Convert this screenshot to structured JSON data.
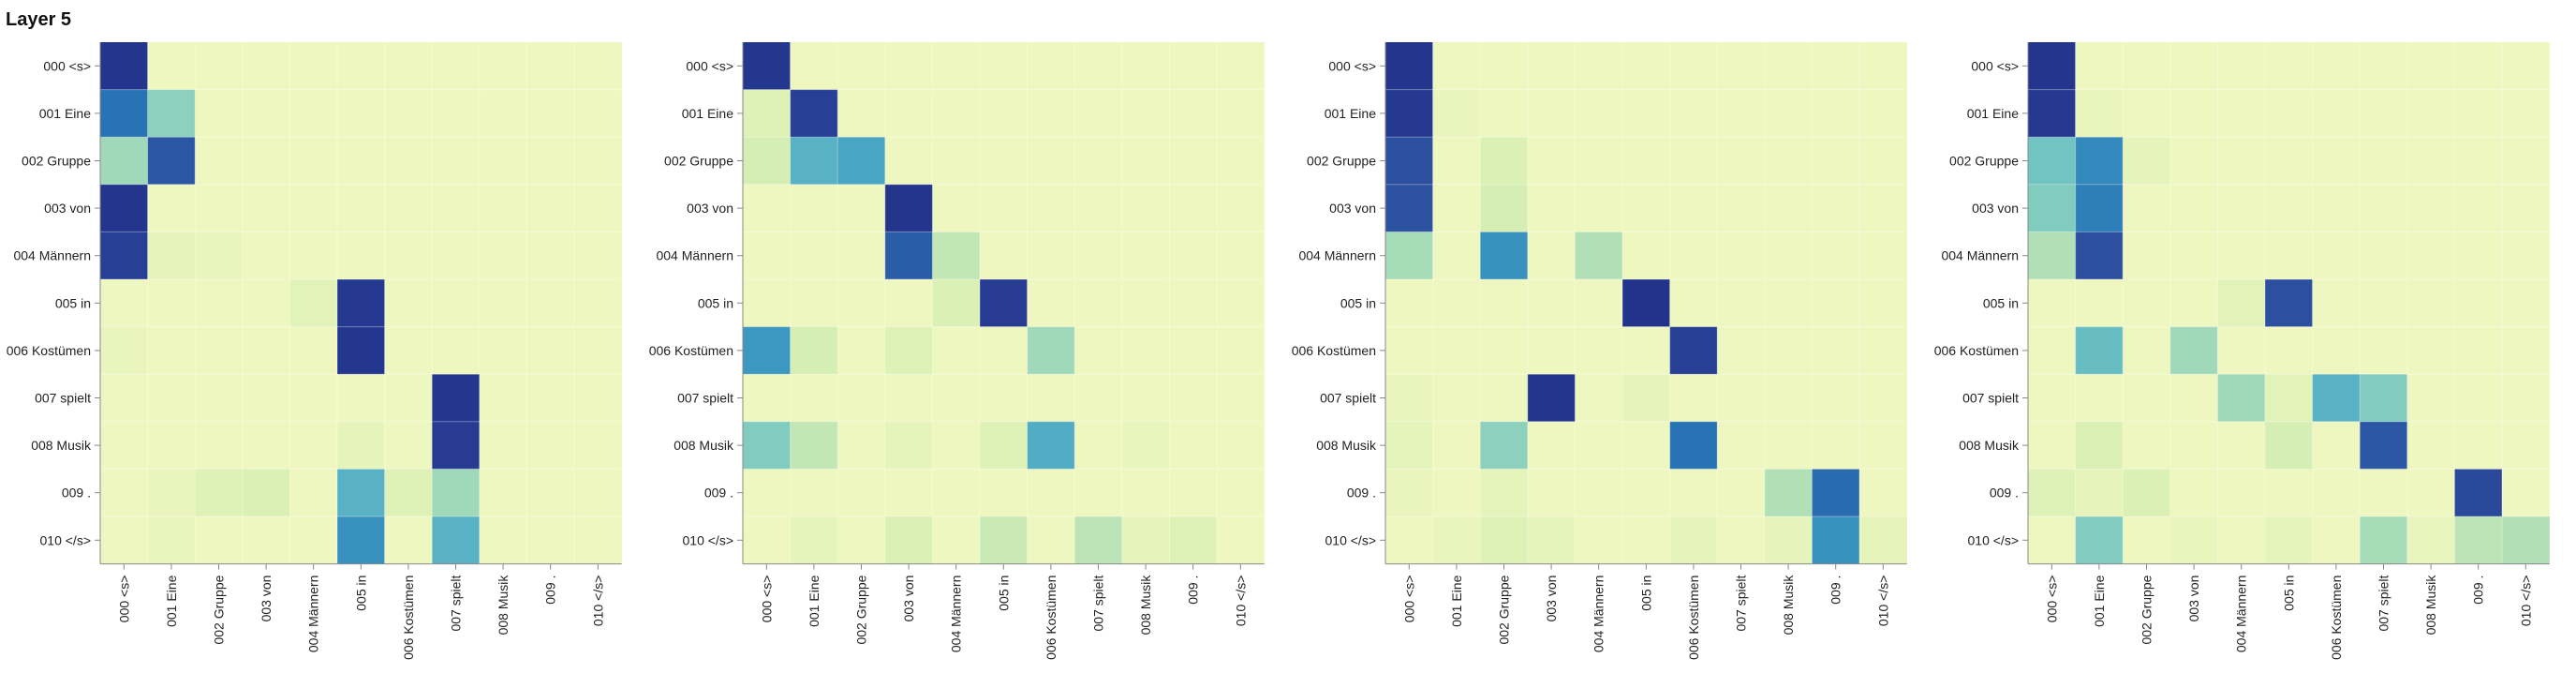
{
  "title": "Layer 5",
  "chart_data": {
    "type": "heatmap",
    "value_range": [
      0,
      1
    ],
    "color_scale": [
      "#eff7c0",
      "#d6efb3",
      "#a5dbb8",
      "#6fc2c3",
      "#41a0c4",
      "#2875b5",
      "#2c4d9e",
      "#22318a"
    ],
    "row_labels": [
      "000 <s>",
      "001 Eine",
      "002 Gruppe",
      "003 von",
      "004 Männern",
      "005 in",
      "006 Kostümen",
      "007 spielt",
      "008 Musik",
      "009 .",
      "010 </s>"
    ],
    "col_labels": [
      "000 <s>",
      "001 Eine",
      "002 Gruppe",
      "003 von",
      "004 Männern",
      "005 in",
      "006 Kostümen",
      "007 spielt",
      "008 Musik",
      "009 .",
      "010 </s>"
    ],
    "heads": [
      {
        "matrix": [
          [
            0.98,
            0,
            0,
            0,
            0,
            0,
            0,
            0,
            0,
            0,
            0
          ],
          [
            0.72,
            0.35,
            0,
            0,
            0,
            0,
            0,
            0,
            0,
            0,
            0
          ],
          [
            0.3,
            0.82,
            0,
            0,
            0,
            0,
            0,
            0,
            0,
            0,
            0
          ],
          [
            0.98,
            0,
            0,
            0,
            0,
            0,
            0,
            0,
            0,
            0,
            0
          ],
          [
            0.93,
            0.05,
            0.04,
            0,
            0,
            0,
            0,
            0,
            0,
            0,
            0
          ],
          [
            0,
            0,
            0,
            0,
            0.08,
            0.96,
            0,
            0,
            0,
            0,
            0
          ],
          [
            0.03,
            0,
            0,
            0,
            0,
            0.97,
            0,
            0,
            0,
            0,
            0
          ],
          [
            0,
            0,
            0,
            0,
            0,
            0,
            0,
            0.97,
            0,
            0,
            0
          ],
          [
            0,
            0,
            0,
            0,
            0,
            0.05,
            0,
            0.95,
            0,
            0,
            0
          ],
          [
            0,
            0.03,
            0.1,
            0.12,
            0,
            0.5,
            0.1,
            0.3,
            0,
            0,
            0
          ],
          [
            0,
            0.03,
            0,
            0,
            0,
            0.62,
            0,
            0.5,
            0,
            0,
            0
          ]
        ]
      },
      {
        "matrix": [
          [
            0.97,
            0,
            0,
            0,
            0,
            0,
            0,
            0,
            0,
            0,
            0
          ],
          [
            0.1,
            0.93,
            0,
            0,
            0,
            0,
            0,
            0,
            0,
            0,
            0
          ],
          [
            0.15,
            0.5,
            0.55,
            0,
            0,
            0,
            0,
            0,
            0,
            0,
            0
          ],
          [
            0,
            0,
            0,
            0.98,
            0,
            0,
            0,
            0,
            0,
            0,
            0
          ],
          [
            0,
            0,
            0,
            0.8,
            0.2,
            0,
            0,
            0,
            0,
            0,
            0
          ],
          [
            0,
            0,
            0,
            0,
            0.12,
            0.95,
            0,
            0,
            0,
            0,
            0
          ],
          [
            0.6,
            0.15,
            0,
            0.1,
            0,
            0,
            0.3,
            0,
            0,
            0,
            0
          ],
          [
            0,
            0,
            0,
            0,
            0,
            0,
            0,
            0,
            0,
            0,
            0
          ],
          [
            0.38,
            0.2,
            0,
            0.06,
            0,
            0.1,
            0.52,
            0,
            0.04,
            0,
            0
          ],
          [
            0,
            0,
            0,
            0,
            0,
            0,
            0,
            0,
            0,
            0,
            0
          ],
          [
            0,
            0.06,
            0,
            0.12,
            0,
            0.18,
            0,
            0.22,
            0.05,
            0.1,
            0
          ]
        ]
      },
      {
        "matrix": [
          [
            0.98,
            0,
            0,
            0,
            0,
            0,
            0,
            0,
            0,
            0,
            0
          ],
          [
            0.96,
            0.03,
            0,
            0,
            0,
            0,
            0,
            0,
            0,
            0,
            0
          ],
          [
            0.85,
            0,
            0.12,
            0,
            0,
            0,
            0,
            0,
            0,
            0,
            0
          ],
          [
            0.84,
            0,
            0.15,
            0,
            0,
            0,
            0,
            0,
            0,
            0,
            0
          ],
          [
            0.28,
            0,
            0.62,
            0,
            0.25,
            0,
            0,
            0,
            0,
            0,
            0
          ],
          [
            0,
            0,
            0,
            0,
            0,
            0.99,
            0,
            0,
            0,
            0,
            0
          ],
          [
            0,
            0,
            0,
            0,
            0,
            0,
            0.93,
            0,
            0,
            0,
            0
          ],
          [
            0.03,
            0,
            0,
            0.98,
            0,
            0.05,
            0,
            0,
            0,
            0,
            0
          ],
          [
            0.06,
            0,
            0.35,
            0,
            0,
            0,
            0.72,
            0,
            0,
            0,
            0
          ],
          [
            0.03,
            0,
            0.06,
            0,
            0,
            0,
            0,
            0,
            0.25,
            0.75,
            0
          ],
          [
            0,
            0.03,
            0.1,
            0.06,
            0,
            0,
            0.05,
            0,
            0.05,
            0.62,
            0.05
          ]
        ]
      },
      {
        "matrix": [
          [
            0.98,
            0,
            0,
            0,
            0,
            0,
            0,
            0,
            0,
            0,
            0
          ],
          [
            0.96,
            0.03,
            0,
            0,
            0,
            0,
            0,
            0,
            0,
            0,
            0
          ],
          [
            0.42,
            0.65,
            0.05,
            0,
            0,
            0,
            0,
            0,
            0,
            0,
            0
          ],
          [
            0.38,
            0.68,
            0,
            0,
            0,
            0,
            0,
            0,
            0,
            0,
            0
          ],
          [
            0.25,
            0.85,
            0,
            0,
            0,
            0,
            0,
            0,
            0,
            0,
            0
          ],
          [
            0,
            0,
            0,
            0,
            0.08,
            0.85,
            0,
            0,
            0,
            0,
            0
          ],
          [
            0,
            0.45,
            0,
            0.3,
            0,
            0,
            0,
            0,
            0,
            0,
            0
          ],
          [
            0,
            0,
            0,
            0,
            0.3,
            0.08,
            0.5,
            0.38,
            0,
            0,
            0
          ],
          [
            0,
            0.12,
            0,
            0,
            0,
            0.15,
            0,
            0.82,
            0,
            0,
            0
          ],
          [
            0.1,
            0.05,
            0.12,
            0,
            0,
            0,
            0,
            0,
            0,
            0.88,
            0
          ],
          [
            0,
            0.38,
            0,
            0.04,
            0,
            0.06,
            0,
            0.28,
            0.04,
            0.22,
            0.25
          ]
        ]
      }
    ]
  }
}
